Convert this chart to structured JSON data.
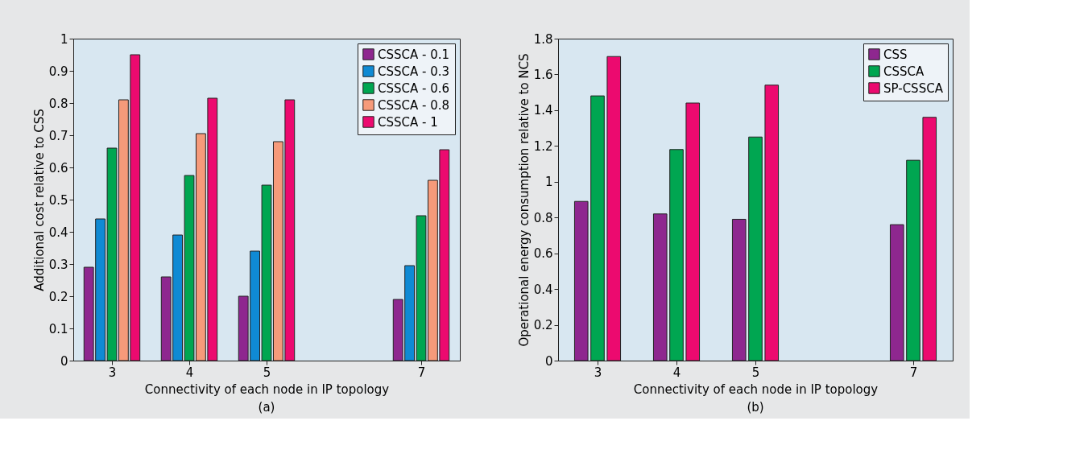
{
  "chart_data": [
    {
      "type": "bar",
      "xlabel": "Connectivity of each node in IP topology",
      "ylabel": "Additional cost relative to CSS",
      "annotations": [
        "(a)"
      ],
      "x": [
        3,
        4,
        5,
        7
      ],
      "xlim": [
        2.5,
        7.5
      ],
      "xticks": [
        3,
        4,
        5,
        7
      ],
      "ylim": [
        0,
        1
      ],
      "yticks": [
        0,
        0.1,
        0.2,
        0.3,
        0.4,
        0.5,
        0.6,
        0.7,
        0.8,
        0.9,
        1
      ],
      "legend": "top right",
      "grid": false,
      "series": [
        {
          "name": "CSSCA - 0.1",
          "color": "#8e278f",
          "values": [
            0.29,
            0.26,
            0.2,
            0.19
          ]
        },
        {
          "name": "CSSCA - 0.3",
          "color": "#0f8ad4",
          "values": [
            0.44,
            0.39,
            0.34,
            0.295
          ]
        },
        {
          "name": "CSSCA - 0.6",
          "color": "#00a651",
          "values": [
            0.66,
            0.575,
            0.545,
            0.45
          ]
        },
        {
          "name": "CSSCA - 0.8",
          "color": "#f69a7a",
          "values": [
            0.81,
            0.705,
            0.68,
            0.56
          ]
        },
        {
          "name": "CSSCA - 1",
          "color": "#ec0a6f",
          "values": [
            0.95,
            0.815,
            0.81,
            0.655
          ]
        }
      ]
    },
    {
      "type": "bar",
      "xlabel": "Connectivity of each node in IP topology",
      "ylabel": "Operational energy consumption relative to NCS",
      "annotations": [
        "(b)"
      ],
      "x": [
        3,
        4,
        5,
        7
      ],
      "xlim": [
        2.5,
        7.5
      ],
      "xticks": [
        3,
        4,
        5,
        7
      ],
      "ylim": [
        0,
        1.8
      ],
      "yticks": [
        0,
        0.2,
        0.4,
        0.6,
        0.8,
        1,
        1.2,
        1.4,
        1.6,
        1.8
      ],
      "legend": "top right",
      "grid": false,
      "series": [
        {
          "name": "CSS",
          "color": "#8e278f",
          "values": [
            0.89,
            0.82,
            0.79,
            0.76
          ]
        },
        {
          "name": "CSSCA",
          "color": "#00a651",
          "values": [
            1.48,
            1.18,
            1.25,
            1.12
          ]
        },
        {
          "name": "SP-CSSCA",
          "color": "#ec0a6f",
          "values": [
            1.7,
            1.44,
            1.54,
            1.36
          ]
        }
      ]
    }
  ]
}
